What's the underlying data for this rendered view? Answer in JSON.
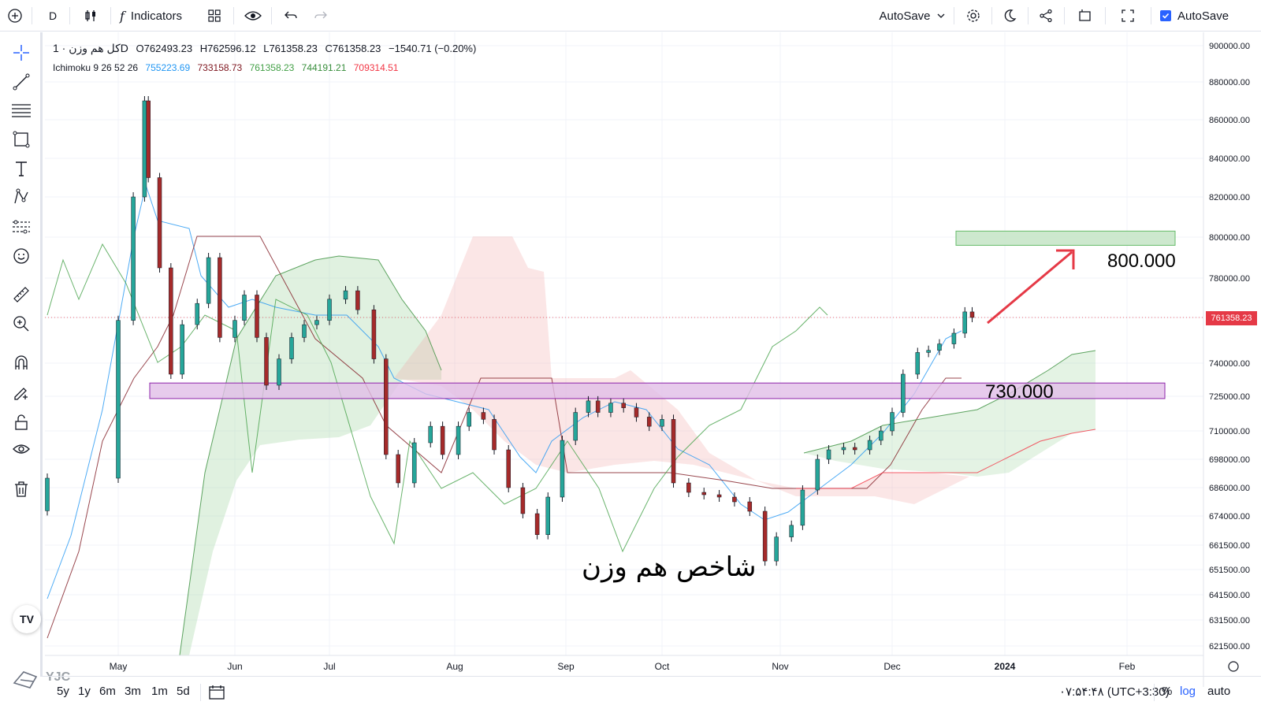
{
  "toolbar": {
    "interval": "D",
    "indicators_label": "Indicators",
    "autosave_label": "AutoSave",
    "autosave_checkbox_label": "AutoSave"
  },
  "legend": {
    "symbol": "کل هم وزن · 1D",
    "open": "O762493.23",
    "high": "H762596.12",
    "low": "L761358.23",
    "close": "C761358.23",
    "change": "−1540.71 (−0.20%)",
    "ichimoku_label": "Ichimoku 9 26 52 26",
    "ichimoku_values": [
      "755223.69",
      "733158.73",
      "761358.23",
      "744191.21",
      "709314.51"
    ],
    "ichimoku_colors": [
      "#2196f3",
      "#801922",
      "#43a047",
      "#388e3c",
      "#f23645"
    ]
  },
  "annotations": {
    "target_label": "800.000",
    "support_label": "730.000",
    "arabic_title": "شاخص هم وزن"
  },
  "price_tag": "761358.23",
  "watermark": "YJC",
  "bottom": {
    "ranges": [
      "5y",
      "1y",
      "6m",
      "3m",
      "1m",
      "5d"
    ],
    "time": "۰۷:۵۴:۴۸ (UTC+3:30)",
    "percent": "%",
    "log": "log",
    "auto": "auto"
  },
  "colors": {
    "up": "#26a69a",
    "down": "#a52a2a",
    "accent": "#2962ff",
    "support_zone": "#e1bee7",
    "target_zone": "#c8e6c9",
    "arrow": "#e53946"
  },
  "chart_data": {
    "type": "candlestick",
    "y_tick_labels": [
      "900000.00",
      "880000.00",
      "860000.00",
      "840000.00",
      "820000.00",
      "800000.00",
      "780000.00",
      "761358.23",
      "740000.00",
      "725000.00",
      "710000.00",
      "698000.00",
      "686000.00",
      "674000.00",
      "661500.00",
      "651500.00",
      "641500.00",
      "631500.00",
      "621500.00"
    ],
    "x_tick_labels": [
      "May",
      "Jun",
      "Jul",
      "Aug",
      "Sep",
      "Oct",
      "Nov",
      "Dec",
      "2024",
      "Feb"
    ],
    "log_scale": true,
    "series": [
      {
        "name": "Price",
        "points": [
          [
            "Apr 25",
            690000
          ],
          [
            "May 1",
            760000
          ],
          [
            "May 5",
            820000
          ],
          [
            "May 8",
            870000
          ],
          [
            "May 9",
            830000
          ],
          [
            "May 12",
            785000
          ],
          [
            "May 15",
            735000
          ],
          [
            "May 18",
            758000
          ],
          [
            "May 22",
            768000
          ],
          [
            "May 25",
            790000
          ],
          [
            "May 28",
            752000
          ],
          [
            "Jun 1",
            760000
          ],
          [
            "Jun 4",
            772000
          ],
          [
            "Jun 8",
            752000
          ],
          [
            "Jun 11",
            730000
          ],
          [
            "Jun 15",
            742000
          ],
          [
            "Jun 19",
            752000
          ],
          [
            "Jun 23",
            758000
          ],
          [
            "Jun 27",
            760000
          ],
          [
            "Jul 1",
            770000
          ],
          [
            "Jul 5",
            774000
          ],
          [
            "Jul 8",
            765000
          ],
          [
            "Jul 12",
            742000
          ],
          [
            "Jul 15",
            700000
          ],
          [
            "Jul 18",
            688000
          ],
          [
            "Jul 22",
            705000
          ],
          [
            "Jul 26",
            712000
          ],
          [
            "Jul 29",
            700000
          ],
          [
            "Aug 2",
            712000
          ],
          [
            "Aug 5",
            718000
          ],
          [
            "Aug 9",
            715000
          ],
          [
            "Aug 12",
            702000
          ],
          [
            "Aug 16",
            686000
          ],
          [
            "Aug 20",
            675000
          ],
          [
            "Aug 24",
            666000
          ],
          [
            "Aug 27",
            682000
          ],
          [
            "Aug 31",
            706000
          ],
          [
            "Sep 4",
            718000
          ],
          [
            "Sep 8",
            723000
          ],
          [
            "Sep 11",
            718000
          ],
          [
            "Sep 15",
            722000
          ],
          [
            "Sep 19",
            720000
          ],
          [
            "Sep 23",
            716000
          ],
          [
            "Sep 27",
            712000
          ],
          [
            "Oct 1",
            715000
          ],
          [
            "Oct 4",
            688000
          ],
          [
            "Oct 8",
            684000
          ],
          [
            "Oct 12",
            683000
          ],
          [
            "Oct 16",
            682000
          ],
          [
            "Oct 20",
            680000
          ],
          [
            "Oct 24",
            676000
          ],
          [
            "Oct 28",
            655000
          ],
          [
            "Oct 31",
            665000
          ],
          [
            "Nov 4",
            670000
          ],
          [
            "Nov 7",
            685000
          ],
          [
            "Nov 11",
            698000
          ],
          [
            "Nov 14",
            702000
          ],
          [
            "Nov 18",
            703000
          ],
          [
            "Nov 21",
            702000
          ],
          [
            "Nov 25",
            706000
          ],
          [
            "Nov 28",
            710000
          ],
          [
            "Dec 1",
            718000
          ],
          [
            "Dec 4",
            735000
          ],
          [
            "Dec 8",
            745000
          ],
          [
            "Dec 11",
            746000
          ],
          [
            "Dec 14",
            749000
          ],
          [
            "Dec 18",
            754000
          ],
          [
            "Dec 21",
            764000
          ],
          [
            "Dec 23",
            761358
          ]
        ]
      }
    ],
    "zones": [
      {
        "label": "730.000",
        "range": [
          724000,
          731000
        ]
      },
      {
        "label": "800.000",
        "range": [
          796000,
          803000
        ]
      }
    ]
  }
}
